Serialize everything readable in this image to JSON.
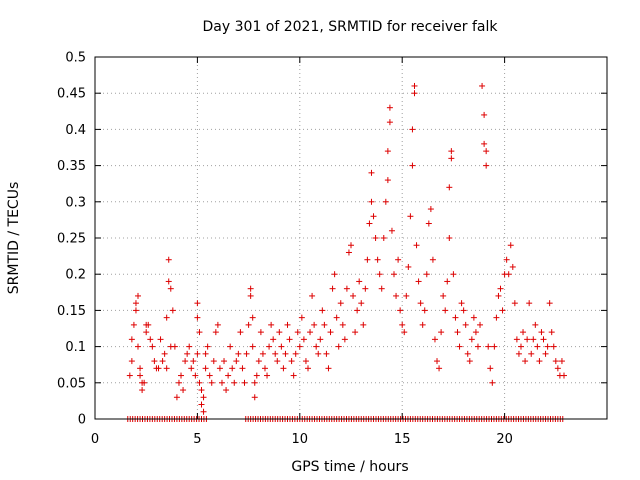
{
  "chart_data": {
    "type": "scatter",
    "title": "Day 301 of 2021, SRMTID for receiver falk",
    "xlabel": "GPS time / hours",
    "ylabel": "SRMTID / TECUs",
    "xlim": [
      0,
      25
    ],
    "ylim": [
      0,
      0.5
    ],
    "x_ticks": [
      "0",
      "5",
      "10",
      "15",
      "20"
    ],
    "y_ticks": [
      "0",
      "0.05",
      "0.1",
      "0.15",
      "0.2",
      "0.25",
      "0.3",
      "0.35",
      "0.4",
      "0.45",
      "0.5"
    ],
    "grid": true,
    "marker": "+",
    "series_color": "#dd0000",
    "series": [
      {
        "name": "SRMTID",
        "note": "zero-level row spans approx 1.6 h to 22.9 h with a gap near 5.5-7.4 h",
        "points": [
          [
            1.7,
            0.06
          ],
          [
            1.8,
            0.08
          ],
          [
            1.8,
            0.11
          ],
          [
            1.9,
            0.13
          ],
          [
            2.0,
            0.16
          ],
          [
            2.0,
            0.15
          ],
          [
            2.1,
            0.17
          ],
          [
            2.1,
            0.1
          ],
          [
            2.2,
            0.07
          ],
          [
            2.2,
            0.06
          ],
          [
            2.3,
            0.05
          ],
          [
            2.3,
            0.04
          ],
          [
            2.4,
            0.05
          ],
          [
            2.5,
            0.13
          ],
          [
            2.5,
            0.12
          ],
          [
            2.6,
            0.13
          ],
          [
            2.7,
            0.11
          ],
          [
            2.8,
            0.1
          ],
          [
            2.9,
            0.08
          ],
          [
            3.0,
            0.07
          ],
          [
            3.1,
            0.07
          ],
          [
            3.2,
            0.11
          ],
          [
            3.3,
            0.08
          ],
          [
            3.4,
            0.09
          ],
          [
            3.5,
            0.07
          ],
          [
            3.5,
            0.14
          ],
          [
            3.6,
            0.19
          ],
          [
            3.6,
            0.22
          ],
          [
            3.7,
            0.18
          ],
          [
            3.7,
            0.1
          ],
          [
            3.8,
            0.15
          ],
          [
            3.9,
            0.1
          ],
          [
            4.0,
            0.03
          ],
          [
            4.1,
            0.05
          ],
          [
            4.2,
            0.06
          ],
          [
            4.3,
            0.04
          ],
          [
            4.4,
            0.08
          ],
          [
            4.5,
            0.09
          ],
          [
            4.6,
            0.1
          ],
          [
            4.7,
            0.07
          ],
          [
            4.8,
            0.08
          ],
          [
            4.9,
            0.06
          ],
          [
            5.0,
            0.09
          ],
          [
            5.0,
            0.16
          ],
          [
            5.0,
            0.14
          ],
          [
            5.1,
            0.12
          ],
          [
            5.1,
            0.05
          ],
          [
            5.2,
            0.04
          ],
          [
            5.2,
            0.02
          ],
          [
            5.3,
            0.01
          ],
          [
            5.3,
            0.03
          ],
          [
            5.4,
            0.07
          ],
          [
            5.4,
            0.09
          ],
          [
            5.5,
            0.1
          ],
          [
            5.6,
            0.06
          ],
          [
            5.7,
            0.05
          ],
          [
            5.8,
            0.08
          ],
          [
            5.9,
            0.12
          ],
          [
            6.0,
            0.13
          ],
          [
            6.1,
            0.07
          ],
          [
            6.2,
            0.05
          ],
          [
            6.3,
            0.08
          ],
          [
            6.4,
            0.04
          ],
          [
            6.5,
            0.06
          ],
          [
            6.6,
            0.1
          ],
          [
            6.7,
            0.07
          ],
          [
            6.8,
            0.05
          ],
          [
            6.9,
            0.08
          ],
          [
            7.0,
            0.09
          ],
          [
            7.1,
            0.12
          ],
          [
            7.2,
            0.07
          ],
          [
            7.3,
            0.05
          ],
          [
            7.4,
            0.09
          ],
          [
            7.5,
            0.13
          ],
          [
            7.6,
            0.18
          ],
          [
            7.6,
            0.17
          ],
          [
            7.7,
            0.14
          ],
          [
            7.7,
            0.1
          ],
          [
            7.8,
            0.05
          ],
          [
            7.8,
            0.03
          ],
          [
            7.9,
            0.06
          ],
          [
            8.0,
            0.08
          ],
          [
            8.1,
            0.12
          ],
          [
            8.2,
            0.09
          ],
          [
            8.3,
            0.07
          ],
          [
            8.4,
            0.06
          ],
          [
            8.5,
            0.1
          ],
          [
            8.6,
            0.13
          ],
          [
            8.7,
            0.11
          ],
          [
            8.8,
            0.09
          ],
          [
            8.9,
            0.08
          ],
          [
            9.0,
            0.12
          ],
          [
            9.1,
            0.1
          ],
          [
            9.2,
            0.07
          ],
          [
            9.3,
            0.09
          ],
          [
            9.4,
            0.13
          ],
          [
            9.5,
            0.11
          ],
          [
            9.6,
            0.08
          ],
          [
            9.7,
            0.06
          ],
          [
            9.8,
            0.09
          ],
          [
            9.9,
            0.12
          ],
          [
            10.0,
            0.1
          ],
          [
            10.1,
            0.14
          ],
          [
            10.2,
            0.11
          ],
          [
            10.3,
            0.08
          ],
          [
            10.4,
            0.07
          ],
          [
            10.5,
            0.12
          ],
          [
            10.6,
            0.17
          ],
          [
            10.7,
            0.13
          ],
          [
            10.8,
            0.1
          ],
          [
            10.9,
            0.09
          ],
          [
            11.0,
            0.11
          ],
          [
            11.1,
            0.15
          ],
          [
            11.2,
            0.13
          ],
          [
            11.3,
            0.09
          ],
          [
            11.4,
            0.07
          ],
          [
            11.5,
            0.12
          ],
          [
            11.6,
            0.18
          ],
          [
            11.7,
            0.2
          ],
          [
            11.8,
            0.14
          ],
          [
            11.9,
            0.1
          ],
          [
            12.0,
            0.16
          ],
          [
            12.1,
            0.13
          ],
          [
            12.2,
            0.11
          ],
          [
            12.3,
            0.18
          ],
          [
            12.4,
            0.23
          ],
          [
            12.5,
            0.24
          ],
          [
            12.6,
            0.17
          ],
          [
            12.7,
            0.12
          ],
          [
            12.8,
            0.15
          ],
          [
            12.9,
            0.19
          ],
          [
            13.0,
            0.16
          ],
          [
            13.1,
            0.13
          ],
          [
            13.2,
            0.18
          ],
          [
            13.3,
            0.22
          ],
          [
            13.4,
            0.27
          ],
          [
            13.5,
            0.3
          ],
          [
            13.5,
            0.34
          ],
          [
            13.6,
            0.28
          ],
          [
            13.7,
            0.25
          ],
          [
            13.8,
            0.22
          ],
          [
            13.9,
            0.2
          ],
          [
            14.0,
            0.18
          ],
          [
            14.1,
            0.25
          ],
          [
            14.2,
            0.3
          ],
          [
            14.3,
            0.33
          ],
          [
            14.3,
            0.37
          ],
          [
            14.4,
            0.41
          ],
          [
            14.4,
            0.43
          ],
          [
            14.5,
            0.26
          ],
          [
            14.6,
            0.2
          ],
          [
            14.7,
            0.17
          ],
          [
            14.8,
            0.22
          ],
          [
            14.9,
            0.15
          ],
          [
            15.0,
            0.13
          ],
          [
            15.1,
            0.12
          ],
          [
            15.2,
            0.17
          ],
          [
            15.3,
            0.21
          ],
          [
            15.4,
            0.28
          ],
          [
            15.5,
            0.35
          ],
          [
            15.5,
            0.4
          ],
          [
            15.6,
            0.45
          ],
          [
            15.6,
            0.46
          ],
          [
            15.7,
            0.24
          ],
          [
            15.8,
            0.19
          ],
          [
            15.9,
            0.16
          ],
          [
            16.0,
            0.13
          ],
          [
            16.1,
            0.15
          ],
          [
            16.2,
            0.2
          ],
          [
            16.3,
            0.27
          ],
          [
            16.4,
            0.29
          ],
          [
            16.5,
            0.22
          ],
          [
            16.6,
            0.11
          ],
          [
            16.7,
            0.08
          ],
          [
            16.8,
            0.07
          ],
          [
            16.9,
            0.12
          ],
          [
            17.0,
            0.17
          ],
          [
            17.1,
            0.15
          ],
          [
            17.2,
            0.19
          ],
          [
            17.3,
            0.25
          ],
          [
            17.3,
            0.32
          ],
          [
            17.4,
            0.36
          ],
          [
            17.4,
            0.37
          ],
          [
            17.5,
            0.2
          ],
          [
            17.6,
            0.14
          ],
          [
            17.7,
            0.12
          ],
          [
            17.8,
            0.1
          ],
          [
            17.9,
            0.16
          ],
          [
            18.0,
            0.15
          ],
          [
            18.1,
            0.13
          ],
          [
            18.2,
            0.09
          ],
          [
            18.3,
            0.08
          ],
          [
            18.4,
            0.11
          ],
          [
            18.5,
            0.14
          ],
          [
            18.6,
            0.12
          ],
          [
            18.7,
            0.1
          ],
          [
            18.8,
            0.13
          ],
          [
            18.9,
            0.46
          ],
          [
            19.0,
            0.42
          ],
          [
            19.0,
            0.38
          ],
          [
            19.1,
            0.37
          ],
          [
            19.1,
            0.35
          ],
          [
            19.2,
            0.1
          ],
          [
            19.3,
            0.07
          ],
          [
            19.4,
            0.05
          ],
          [
            19.5,
            0.1
          ],
          [
            19.6,
            0.14
          ],
          [
            19.7,
            0.17
          ],
          [
            19.8,
            0.18
          ],
          [
            19.9,
            0.15
          ],
          [
            20.0,
            0.2
          ],
          [
            20.1,
            0.22
          ],
          [
            20.2,
            0.2
          ],
          [
            20.3,
            0.24
          ],
          [
            20.4,
            0.21
          ],
          [
            20.5,
            0.16
          ],
          [
            20.6,
            0.11
          ],
          [
            20.7,
            0.09
          ],
          [
            20.8,
            0.1
          ],
          [
            20.9,
            0.12
          ],
          [
            21.0,
            0.08
          ],
          [
            21.1,
            0.11
          ],
          [
            21.2,
            0.16
          ],
          [
            21.3,
            0.09
          ],
          [
            21.4,
            0.11
          ],
          [
            21.5,
            0.13
          ],
          [
            21.6,
            0.1
          ],
          [
            21.7,
            0.08
          ],
          [
            21.8,
            0.12
          ],
          [
            21.9,
            0.11
          ],
          [
            22.0,
            0.09
          ],
          [
            22.1,
            0.1
          ],
          [
            22.2,
            0.16
          ],
          [
            22.3,
            0.12
          ],
          [
            22.4,
            0.1
          ],
          [
            22.5,
            0.08
          ],
          [
            22.6,
            0.07
          ],
          [
            22.7,
            0.06
          ],
          [
            22.8,
            0.08
          ],
          [
            22.9,
            0.06
          ]
        ]
      }
    ]
  }
}
